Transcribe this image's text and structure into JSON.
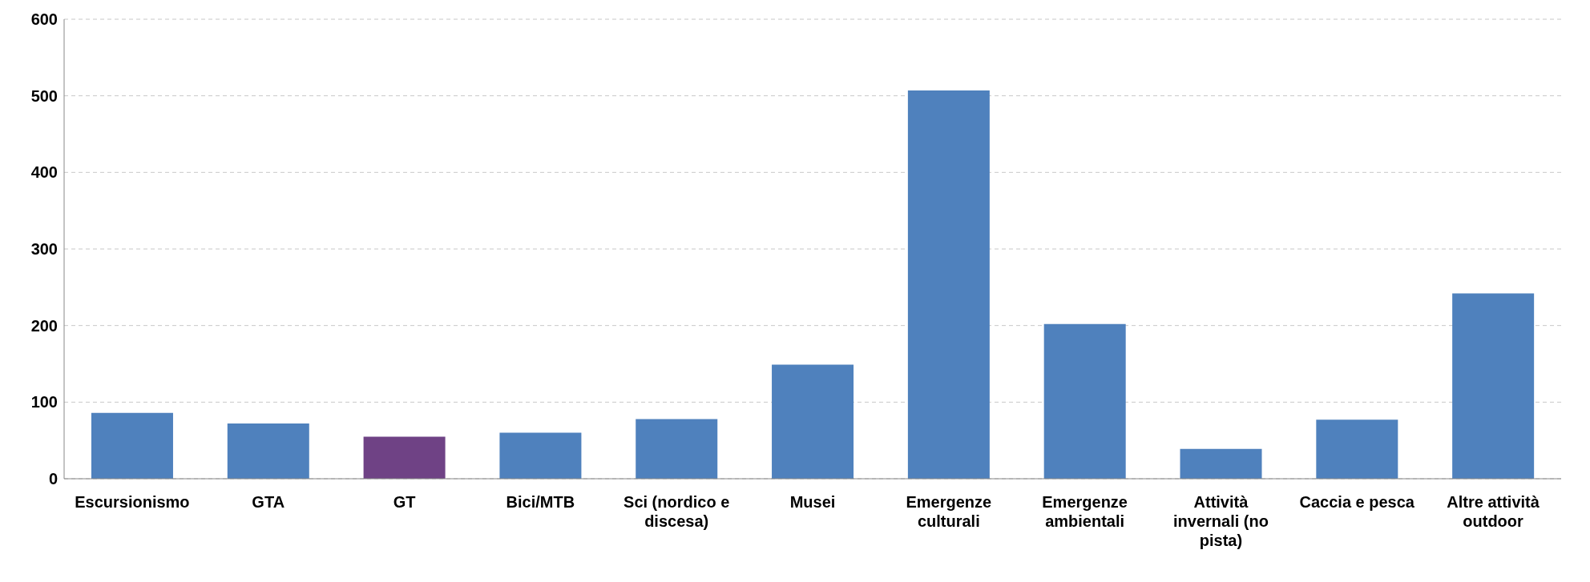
{
  "chart_data": {
    "type": "bar",
    "categories": [
      "Escursionismo",
      "GTA",
      "GT",
      "Bici/MTB",
      "Sci (nordico e discesa)",
      "Musei",
      "Emergenze culturali",
      "Emergenze ambientali",
      "Attività invernali (no pista)",
      "Caccia e pesca",
      "Altre attività outdoor"
    ],
    "values": [
      86,
      72,
      55,
      60,
      78,
      149,
      507,
      202,
      39,
      77,
      242
    ],
    "colors": [
      "#4f81bd",
      "#4f81bd",
      "#6f4285",
      "#4f81bd",
      "#4f81bd",
      "#4f81bd",
      "#4f81bd",
      "#4f81bd",
      "#4f81bd",
      "#4f81bd",
      "#4f81bd"
    ],
    "ylim": [
      0,
      600
    ],
    "yticks": [
      0,
      100,
      200,
      300,
      400,
      500,
      600
    ],
    "grid": "y",
    "legend": false
  }
}
